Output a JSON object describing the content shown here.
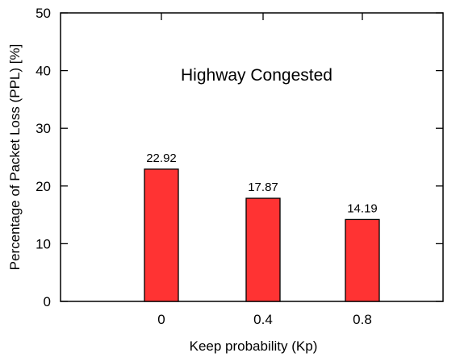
{
  "chart_data": {
    "type": "bar",
    "annotation": "Highway Congested",
    "xlabel": "Keep probability (Kp)",
    "ylabel": "Percentage of Packet Loss (PPL) [%]",
    "categories": [
      "0",
      "0.4",
      "0.8"
    ],
    "values": [
      22.92,
      17.87,
      14.19
    ],
    "data_labels": [
      "22.92",
      "17.87",
      "14.19"
    ],
    "ylim": [
      0,
      50
    ],
    "yticks": [
      "0",
      "10",
      "20",
      "30",
      "40",
      "50"
    ],
    "grid": false,
    "legend": "none",
    "bar_color": "#ff3333",
    "bar_edge_color": "#000000"
  }
}
